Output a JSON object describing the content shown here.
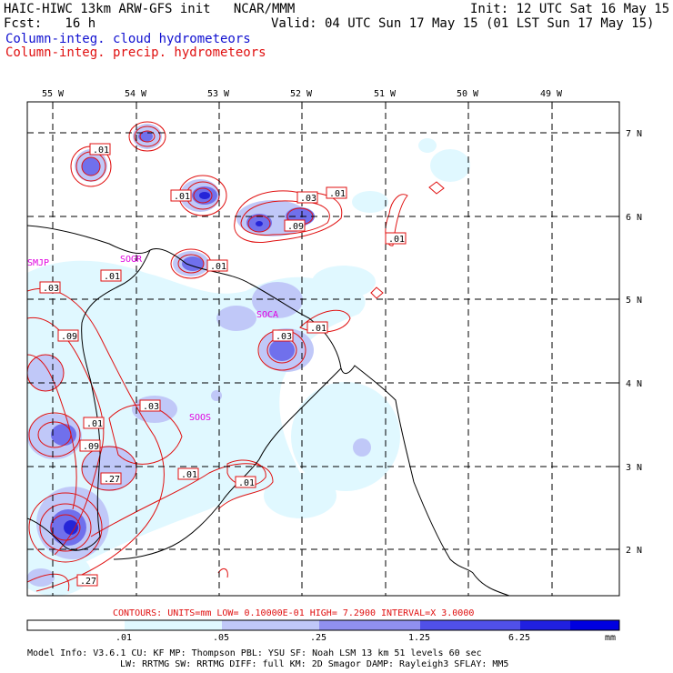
{
  "header": {
    "model": "HAIC-HIWC 13km ARW-GFS init   NCAR/MMM",
    "init": "Init: 12 UTC Sat 16 May 15",
    "fcst": "Fcst:   16 h",
    "valid": "Valid: 04 UTC Sun 17 May 15 (01 LST Sun 17 May 15)",
    "field1": "Column-integ. cloud hydrometeors",
    "field2": "Column-integ. precip. hydrometeors",
    "color_field1": "#1010d0",
    "color_field2": "#e01010"
  },
  "map": {
    "lon_labels": [
      "55 W",
      "54 W",
      "53 W",
      "52 W",
      "51 W",
      "50 W",
      "49 W"
    ],
    "lat_labels": [
      "7 N",
      "6 N",
      "5 N",
      "4 N",
      "3 N",
      "2 N"
    ],
    "stations": [
      "SMJP",
      "SOGR",
      "SOCA",
      "SOOS"
    ],
    "contour_labels": [
      ".01",
      ".01",
      ".03",
      ".01",
      ".09",
      ".01",
      ".01",
      ".01",
      ".03",
      ".09",
      ".01",
      ".03",
      ".03",
      ".01",
      ".09",
      ".27",
      ".01",
      ".01",
      ".27"
    ]
  },
  "footer": {
    "contours": "CONTOURS:  UNITS=mm  LOW= 0.10000E-01  HIGH=  7.2900     INTERVAL=X  3.0000",
    "scale_values": [
      ".01",
      ".05",
      ".25",
      "1.25",
      "6.25"
    ],
    "scale_unit": "mm",
    "scale_colors": [
      "#ffffff",
      "#e0f8ff",
      "#c0c8f8",
      "#9090f0",
      "#5050e8",
      "#2020e0",
      "#0000e0"
    ],
    "info1": "Model Info: V3.6.1    CU: KF      MP: Thompson     PBL: YSU       SF: Noah LSM    13 km   51 levels  60 sec",
    "info2": "LW: RRTMG   SW: RRTMG  DIFF: full   KM: 2D Smagor DAMP: Rayleigh3  SFLAY: MM5"
  }
}
